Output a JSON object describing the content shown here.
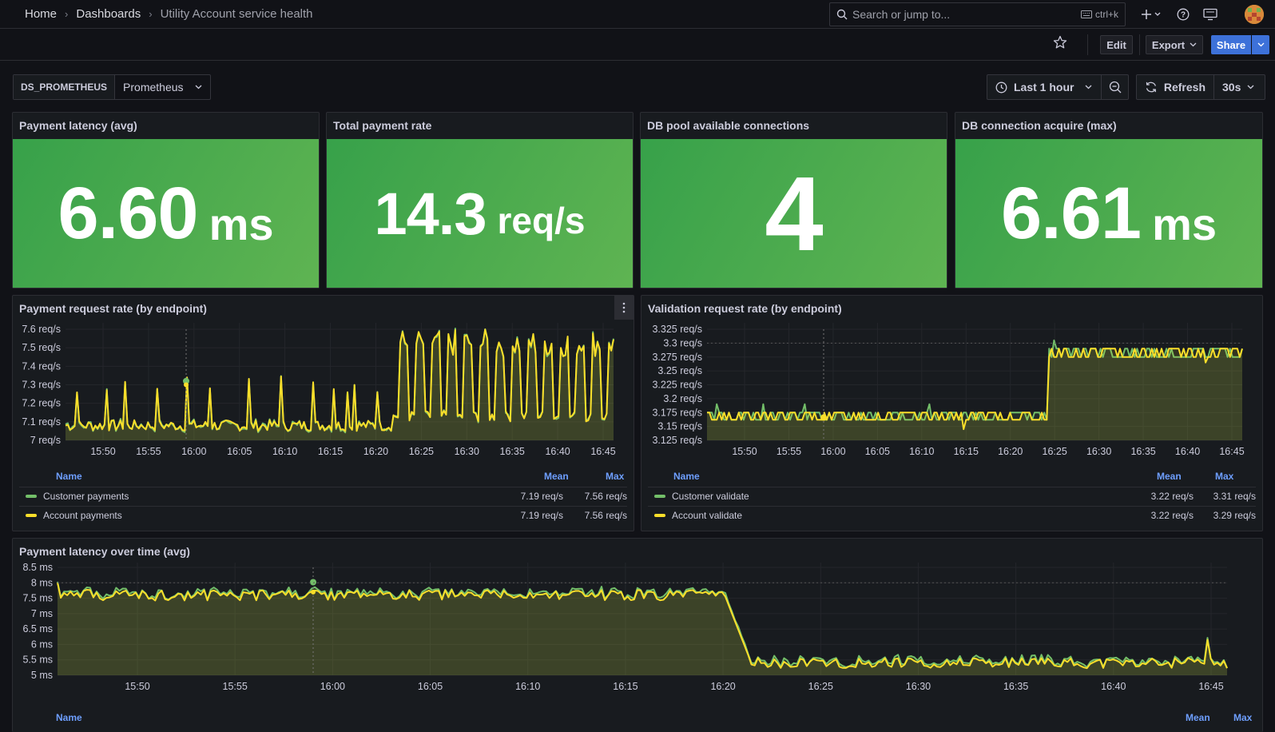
{
  "breadcrumb": {
    "home": "Home",
    "dashboards": "Dashboards",
    "current": "Utility Account service health"
  },
  "search": {
    "placeholder": "Search or jump to...",
    "shortcut": "ctrl+k"
  },
  "toolbar": {
    "edit": "Edit",
    "export": "Export",
    "share": "Share"
  },
  "variable": {
    "label": "DS_PROMETHEUS",
    "value": "Prometheus"
  },
  "time_picker": {
    "range": "Last 1 hour",
    "refresh": "Refresh",
    "interval": "30s"
  },
  "colors": {
    "green": "#73bf69",
    "yellow": "#fade2a",
    "stat_bg": "#4fa94d",
    "legend_header": "#6e9fff"
  },
  "stats": [
    {
      "title": "Payment latency (avg)",
      "value": "6.60",
      "unit": "ms"
    },
    {
      "title": "Total payment rate",
      "value": "14.3",
      "unit": "req/s"
    },
    {
      "title": "DB pool available connections",
      "value": "4",
      "unit": ""
    },
    {
      "title": "DB connection acquire (max)",
      "value": "6.61",
      "unit": "ms"
    }
  ],
  "panels": {
    "payment_rate": {
      "title": "Payment request rate (by endpoint)",
      "legend": {
        "name": "Name",
        "mean": "Mean",
        "max": "Max",
        "rows": [
          {
            "name": "Customer payments",
            "mean": "7.19 req/s",
            "max": "7.56 req/s",
            "color": "#73bf69"
          },
          {
            "name": "Account payments",
            "mean": "7.19 req/s",
            "max": "7.56 req/s",
            "color": "#fade2a"
          }
        ]
      }
    },
    "validation_rate": {
      "title": "Validation request rate (by endpoint)",
      "legend": {
        "name": "Name",
        "mean": "Mean",
        "max": "Max",
        "rows": [
          {
            "name": "Customer validate",
            "mean": "3.22 req/s",
            "max": "3.31 req/s",
            "color": "#73bf69"
          },
          {
            "name": "Account validate",
            "mean": "3.22 req/s",
            "max": "3.29 req/s",
            "color": "#fade2a"
          }
        ]
      }
    },
    "latency": {
      "title": "Payment latency over time (avg)",
      "legend": {
        "name": "Name",
        "mean": "Mean",
        "max": "Max"
      }
    }
  },
  "chart_data": [
    {
      "type": "line",
      "title": "Payment request rate (by endpoint)",
      "x": [
        "15:50",
        "15:55",
        "16:00",
        "16:05",
        "16:10",
        "16:15",
        "16:20",
        "16:25",
        "16:30",
        "16:35",
        "16:40",
        "16:45"
      ],
      "y_ticks": [
        "7 req/s",
        "7.1 req/s",
        "7.2 req/s",
        "7.3 req/s",
        "7.4 req/s",
        "7.5 req/s",
        "7.6 req/s"
      ],
      "ylim": [
        7,
        7.6
      ],
      "series": [
        {
          "name": "Customer payments",
          "color": "#73bf69",
          "mean": 7.19,
          "max": 7.56
        },
        {
          "name": "Account payments",
          "color": "#fade2a",
          "mean": 7.19,
          "max": 7.56
        }
      ]
    },
    {
      "type": "line",
      "title": "Validation request rate (by endpoint)",
      "x": [
        "15:50",
        "15:55",
        "16:00",
        "16:05",
        "16:10",
        "16:15",
        "16:20",
        "16:25",
        "16:30",
        "16:35",
        "16:40",
        "16:45"
      ],
      "y_ticks": [
        "3.125 req/s",
        "3.15 req/s",
        "3.175 req/s",
        "3.2 req/s",
        "3.225 req/s",
        "3.25 req/s",
        "3.275 req/s",
        "3.3 req/s",
        "3.325 req/s"
      ],
      "ylim": [
        3.125,
        3.325
      ],
      "series": [
        {
          "name": "Customer validate",
          "color": "#73bf69",
          "mean": 3.22,
          "max": 3.31
        },
        {
          "name": "Account validate",
          "color": "#fade2a",
          "mean": 3.22,
          "max": 3.29
        }
      ]
    },
    {
      "type": "line",
      "title": "Payment latency over time (avg)",
      "x": [
        "15:50",
        "15:55",
        "16:00",
        "16:05",
        "16:10",
        "16:15",
        "16:20",
        "16:25",
        "16:30",
        "16:35",
        "16:40",
        "16:45"
      ],
      "y_ticks": [
        "5 ms",
        "5.5 ms",
        "6 ms",
        "6.5 ms",
        "7 ms",
        "7.5 ms",
        "8 ms",
        "8.5 ms"
      ],
      "ylim": [
        5,
        8.5
      ]
    }
  ]
}
